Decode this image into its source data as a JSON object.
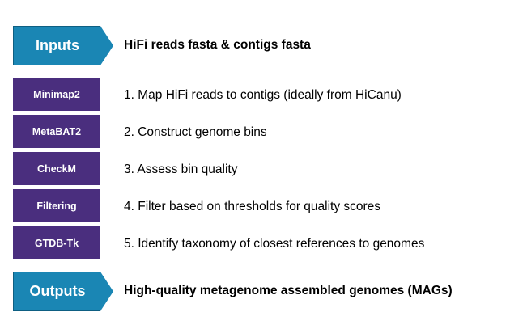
{
  "colors": {
    "io_arrow": "#1a86b4",
    "tool_box": "#4a2e7e"
  },
  "inputs": {
    "label": "Inputs",
    "text": "HiFi reads fasta & contigs fasta"
  },
  "steps": [
    {
      "tool": "Minimap2",
      "text": "1. Map HiFi reads to contigs (ideally from HiCanu)"
    },
    {
      "tool": "MetaBAT2",
      "text": "2. Construct genome bins"
    },
    {
      "tool": "CheckM",
      "text": "3. Assess bin quality"
    },
    {
      "tool": "Filtering",
      "text": "4. Filter based on thresholds for quality scores"
    },
    {
      "tool": "GTDB-Tk",
      "text": "5. Identify taxonomy of closest references to genomes"
    }
  ],
  "outputs": {
    "label": "Outputs",
    "text": "High-quality metagenome assembled genomes (MAGs)"
  }
}
